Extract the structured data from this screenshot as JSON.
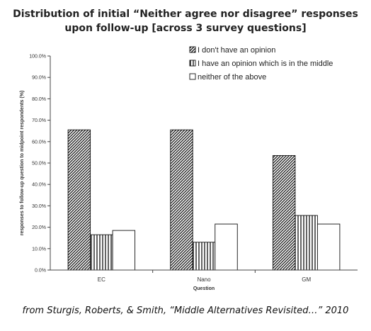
{
  "title_line1": "Distribution of initial “Neither agree nor disagree” responses",
  "title_line2": "upon follow-up [across 3 survey questions]",
  "caption": "from Sturgis, Roberts, & Smith, “Middle Alternatives Revisited…” 2010",
  "chart_data": {
    "type": "bar",
    "categories": [
      "EC",
      "Nano",
      "GM"
    ],
    "series": [
      {
        "name": "I don't have an opinion",
        "values": [
          65.5,
          65.5,
          53.5
        ],
        "pattern": "diagonal-hatch"
      },
      {
        "name": "I have an opinion which is in the middle",
        "values": [
          16.5,
          13.0,
          25.5
        ],
        "pattern": "vertical-lines"
      },
      {
        "name": "neither of the above",
        "values": [
          18.5,
          21.5,
          21.5
        ],
        "pattern": "white"
      }
    ],
    "xlabel": "Question",
    "ylabel": "responses to follow-up question to midpoint respondents (%)",
    "ylim": [
      0,
      100
    ],
    "yticks": [
      "0.0%",
      "10.0%",
      "20.0%",
      "30.0%",
      "40.0%",
      "50.0%",
      "60.0%",
      "70.0%",
      "80.0%",
      "90.0%",
      "100.0%"
    ],
    "legend_position": "top-right",
    "grid": false
  }
}
